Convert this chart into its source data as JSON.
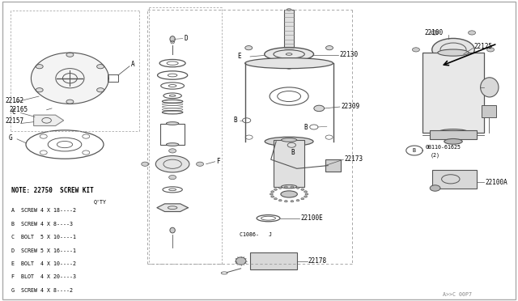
{
  "background_color": "#ffffff",
  "line_color": "#555555",
  "fig_width": 6.4,
  "fig_height": 3.72,
  "dpi": 100,
  "note_text": "NOTE: 22750  SCREW KIT",
  "qty_label": "Q'TY",
  "screw_table": [
    [
      "A",
      "SCREW",
      "4 X 18",
      "2"
    ],
    [
      "B",
      "SCREW",
      "4 X 8",
      "3"
    ],
    [
      "C",
      "BOLT",
      "5 X 10",
      "1"
    ],
    [
      "D",
      "SCREW",
      "5 X 16",
      "1"
    ],
    [
      "E",
      "BOLT",
      "4 X 10",
      "2"
    ],
    [
      "F",
      "BLOT",
      "4 X 20",
      "3"
    ],
    [
      "G",
      "SCREW",
      "4 X 8",
      "2"
    ]
  ]
}
